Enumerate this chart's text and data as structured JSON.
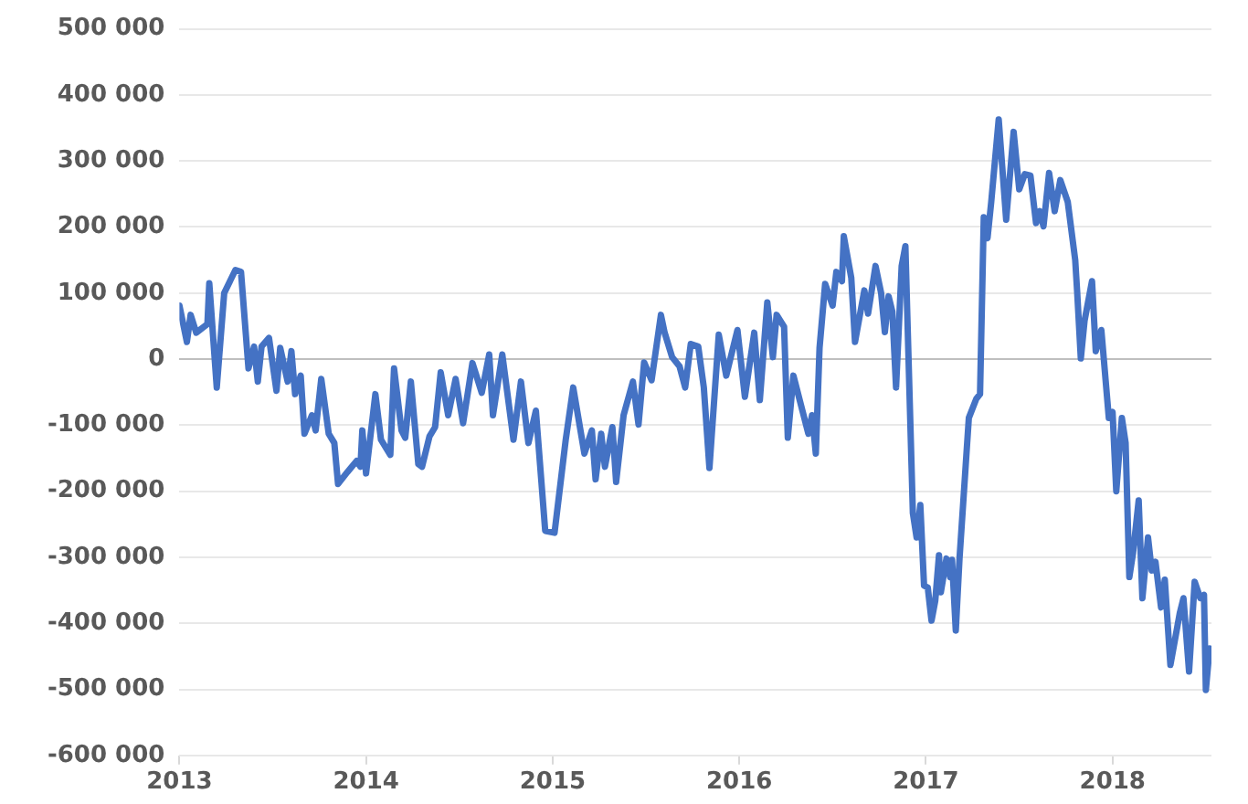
{
  "chart_data": {
    "type": "line",
    "color": "#4472c4",
    "grid": "y",
    "x": [
      2013.0,
      2013.04,
      2013.06,
      2013.09,
      2013.15,
      2013.16,
      2013.2,
      2013.24,
      2013.3,
      2013.33,
      2013.37,
      2013.4,
      2013.42,
      2013.44,
      2013.48,
      2013.52,
      2013.54,
      2013.58,
      2013.6,
      2013.62,
      2013.65,
      2013.67,
      2013.71,
      2013.73,
      2013.76,
      2013.8,
      2013.83,
      2013.85,
      2013.9,
      2013.95,
      2013.97,
      2013.98,
      2014.0,
      2014.05,
      2014.08,
      2014.13,
      2014.15,
      2014.19,
      2014.21,
      2014.24,
      2014.28,
      2014.3,
      2014.34,
      2014.37,
      2014.4,
      2014.44,
      2014.48,
      2014.52,
      2014.57,
      2014.62,
      2014.66,
      2014.68,
      2014.73,
      2014.79,
      2014.83,
      2014.87,
      2014.91,
      2014.96,
      2015.01,
      2015.07,
      2015.11,
      2015.17,
      2015.21,
      2015.23,
      2015.26,
      2015.28,
      2015.32,
      2015.34,
      2015.38,
      2015.43,
      2015.46,
      2015.49,
      2015.53,
      2015.58,
      2015.6,
      2015.64,
      2015.68,
      2015.71,
      2015.74,
      2015.78,
      2015.81,
      2015.84,
      2015.89,
      2015.93,
      2015.99,
      2016.03,
      2016.08,
      2016.11,
      2016.15,
      2016.18,
      2016.2,
      2016.24,
      2016.26,
      2016.29,
      2016.34,
      2016.37,
      2016.39,
      2016.41,
      2016.43,
      2016.46,
      2016.5,
      2016.52,
      2016.55,
      2016.56,
      2016.6,
      2016.62,
      2016.67,
      2016.69,
      2016.73,
      2016.76,
      2016.78,
      2016.8,
      2016.82,
      2016.84,
      2016.87,
      2016.89,
      2016.93,
      2016.95,
      2016.97,
      2016.99,
      2017.01,
      2017.03,
      2017.05,
      2017.07,
      2017.08,
      2017.11,
      2017.13,
      2017.14,
      2017.16,
      2017.18,
      2017.23,
      2017.27,
      2017.29,
      2017.31,
      2017.33,
      2017.35,
      2017.39,
      2017.43,
      2017.47,
      2017.5,
      2017.53,
      2017.56,
      2017.59,
      2017.61,
      2017.63,
      2017.66,
      2017.69,
      2017.72,
      2017.76,
      2017.8,
      2017.81,
      2017.83,
      2017.85,
      2017.89,
      2017.91,
      2017.94,
      2017.98,
      2018.0,
      2018.02,
      2018.05,
      2018.07,
      2018.09,
      2018.11,
      2018.14,
      2018.16,
      2018.19,
      2018.21,
      2018.23,
      2018.26,
      2018.28,
      2018.31,
      2018.36,
      2018.38,
      2018.41,
      2018.44,
      2018.47,
      2018.49,
      2018.5,
      2018.52
    ],
    "values": [
      81000,
      26000,
      67000,
      40000,
      53000,
      115000,
      -43000,
      100000,
      135000,
      132000,
      -14000,
      19000,
      -34000,
      19000,
      32000,
      -48000,
      17000,
      -34000,
      12000,
      -53000,
      -25000,
      -113000,
      -85000,
      -108000,
      -30000,
      -113000,
      -127000,
      -189000,
      -171000,
      -154000,
      -163000,
      -108000,
      -173000,
      -53000,
      -122000,
      -145000,
      -14000,
      -108000,
      -119000,
      -34000,
      -159000,
      -163000,
      -117000,
      -103000,
      -20000,
      -85000,
      -30000,
      -97000,
      -6000,
      -51000,
      7000,
      -85000,
      7000,
      -122000,
      -34000,
      -127000,
      -78000,
      -260000,
      -263000,
      -122000,
      -43000,
      -143000,
      -108000,
      -182000,
      -113000,
      -163000,
      -103000,
      -186000,
      -85000,
      -34000,
      -99000,
      -5000,
      -32000,
      67000,
      40000,
      3000,
      -11000,
      -43000,
      23000,
      19000,
      -43000,
      -165000,
      37000,
      -25000,
      44000,
      -57000,
      40000,
      -62000,
      86000,
      3000,
      67000,
      49000,
      -119000,
      -25000,
      -80000,
      -113000,
      -85000,
      -143000,
      17000,
      114000,
      81000,
      132000,
      118000,
      186000,
      123000,
      26000,
      104000,
      69000,
      141000,
      100000,
      41000,
      95000,
      72000,
      -43000,
      141000,
      171000,
      -233000,
      -270000,
      -221000,
      -343000,
      -346000,
      -396000,
      -366000,
      -297000,
      -353000,
      -302000,
      -330000,
      -304000,
      -411000,
      -302000,
      -89000,
      -60000,
      -53000,
      215000,
      183000,
      238000,
      363000,
      211000,
      344000,
      257000,
      280000,
      278000,
      206000,
      224000,
      201000,
      282000,
      224000,
      271000,
      238000,
      150000,
      104000,
      1000,
      58000,
      118000,
      12000,
      44000,
      -89000,
      -80000,
      -200000,
      -89000,
      -127000,
      -330000,
      -293000,
      -214000,
      -362000,
      -270000,
      -320000,
      -307000,
      -376000,
      -334000,
      -463000,
      -385000,
      -362000,
      -473000,
      -337000,
      -362000,
      -357000,
      -501000,
      -438000
    ],
    "xlim": [
      2013,
      2018.53
    ],
    "xticks": [
      2013,
      2014,
      2015,
      2016,
      2017,
      2018
    ],
    "ylim": [
      -600000,
      500000
    ],
    "yticks": [
      {
        "value": -600000,
        "label": "-600 000"
      },
      {
        "value": -500000,
        "label": "-500 000"
      },
      {
        "value": -400000,
        "label": "-400 000"
      },
      {
        "value": -300000,
        "label": "-300 000"
      },
      {
        "value": -200000,
        "label": "-200 000"
      },
      {
        "value": -100000,
        "label": "-100 000"
      },
      {
        "value": 0,
        "label": "0"
      },
      {
        "value": 100000,
        "label": "100 000"
      },
      {
        "value": 200000,
        "label": "200 000"
      },
      {
        "value": 300000,
        "label": "300 000"
      },
      {
        "value": 400000,
        "label": "400 000"
      },
      {
        "value": 500000,
        "label": "500 000"
      }
    ]
  }
}
